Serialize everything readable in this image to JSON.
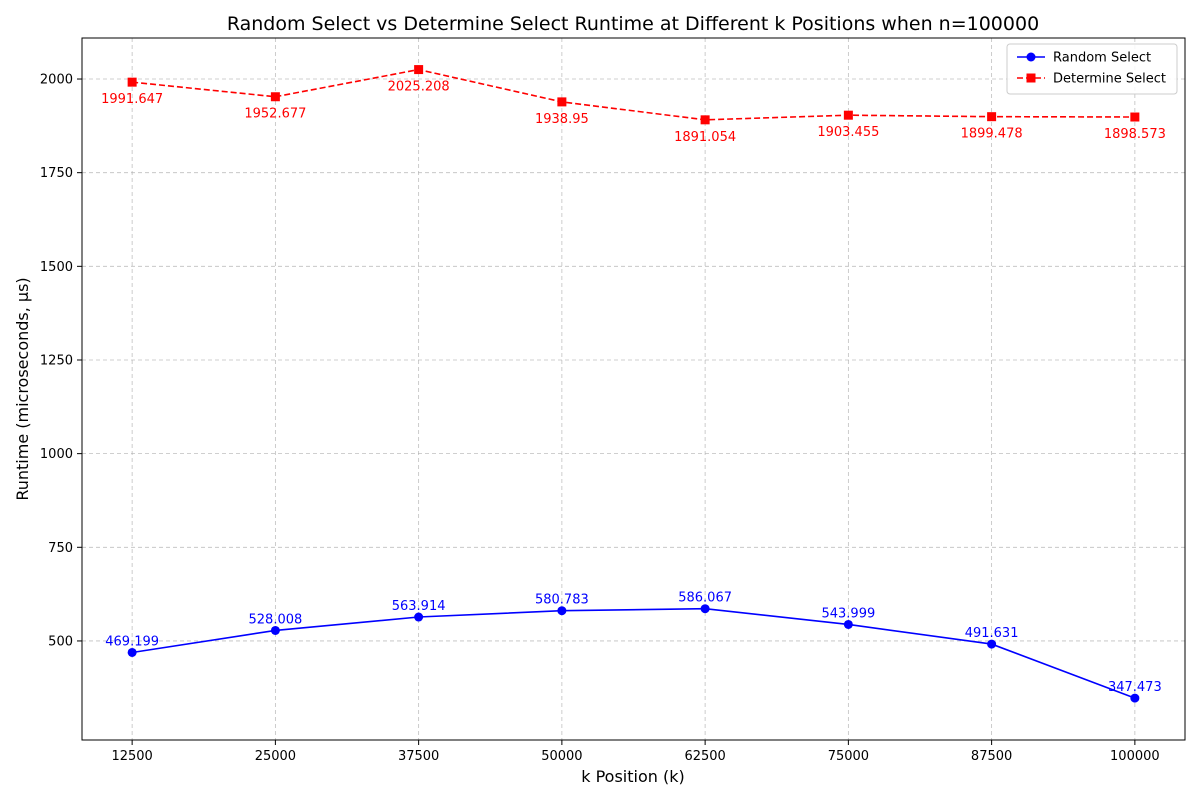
{
  "chart_data": {
    "type": "line",
    "title": "Random Select vs Determine Select Runtime at Different k Positions when n=100000",
    "xlabel": "k Position (k)",
    "ylabel": "Runtime (microseconds, μs)",
    "x": [
      12500,
      25000,
      37500,
      50000,
      62500,
      75000,
      87500,
      100000
    ],
    "x_tick_labels": [
      "12500",
      "25000",
      "37500",
      "50000",
      "62500",
      "75000",
      "87500",
      "100000"
    ],
    "y_ticks": [
      500,
      750,
      1000,
      1250,
      1500,
      1750,
      2000
    ],
    "y_tick_labels": [
      "500",
      "750",
      "1000",
      "1250",
      "1500",
      "1750",
      "2000"
    ],
    "xlim": [
      8125,
      104375
    ],
    "ylim": [
      235.6,
      2109.5
    ],
    "grid": true,
    "legend_position": "top-right",
    "series": [
      {
        "name": "Random Select",
        "color": "#0000ff",
        "line_style": "solid",
        "marker": "circle",
        "label_position": "above",
        "values": [
          469.199,
          528.008,
          563.914,
          580.783,
          586.067,
          543.999,
          491.631,
          347.473
        ],
        "value_labels": [
          "469.199",
          "528.008",
          "563.914",
          "580.783",
          "586.067",
          "543.999",
          "491.631",
          "347.473"
        ]
      },
      {
        "name": "Determine Select",
        "color": "#ff0000",
        "line_style": "dashed",
        "marker": "square",
        "label_position": "below",
        "values": [
          1991.647,
          1952.677,
          2025.208,
          1938.95,
          1891.054,
          1903.455,
          1899.478,
          1898.573
        ],
        "value_labels": [
          "1991.647",
          "1952.677",
          "2025.208",
          "1938.95",
          "1891.054",
          "1903.455",
          "1899.478",
          "1898.573"
        ]
      }
    ]
  }
}
